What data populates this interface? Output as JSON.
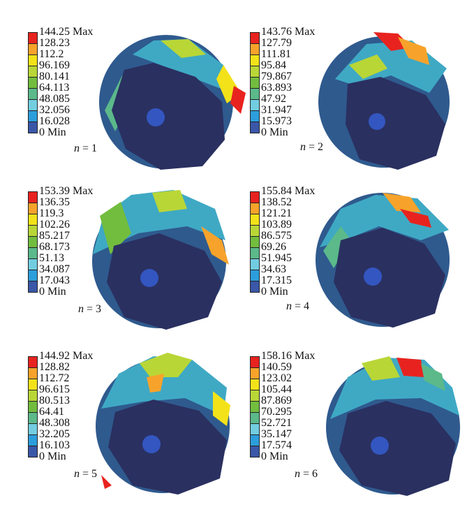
{
  "colors": {
    "scale": [
      "#e8231f",
      "#f7a32b",
      "#f3e219",
      "#b9d637",
      "#72bd3e",
      "#5bb98a",
      "#72cde0",
      "#2c9edb",
      "#3a57a8"
    ],
    "body": "#2a3060",
    "hub": "#3356c0"
  },
  "panels": [
    {
      "ticks": [
        "144.25 Max",
        "128.23",
        "112.2",
        "96.169",
        "80.141",
        "64.113",
        "48.085",
        "32.056",
        "16.028",
        "0 Min"
      ],
      "n_var": "n",
      "n_rest": " = 1"
    },
    {
      "ticks": [
        "143.76 Max",
        "127.79",
        "111.81",
        "95.84",
        "79.867",
        "63.893",
        "47.92",
        "31.947",
        "15.973",
        "0 Min"
      ],
      "n_var": "n",
      "n_rest": " = 2"
    },
    {
      "ticks": [
        "153.39 Max",
        "136.35",
        "119.3",
        "102.26",
        "85.217",
        "68.173",
        "51.13",
        "34.087",
        "17.043",
        "0 Min"
      ],
      "n_var": "n",
      "n_rest": " = 3"
    },
    {
      "ticks": [
        "155.84 Max",
        "138.52",
        "121.21",
        "103.89",
        "86.575",
        "69.26",
        "51.945",
        "34.63",
        "17.315",
        "0 Min"
      ],
      "n_var": "n",
      "n_rest": " = 4"
    },
    {
      "ticks": [
        "144.92 Max",
        "128.82",
        "112.72",
        "96.615",
        "80.513",
        "64.41",
        "48.308",
        "32.205",
        "16.103",
        "0 Min"
      ],
      "n_var": "n",
      "n_rest": " = 5"
    },
    {
      "ticks": [
        "158.16 Max",
        "140.59",
        "123.02",
        "105.44",
        "87.869",
        "70.295",
        "52.721",
        "35.147",
        "17.574",
        "0 Min"
      ],
      "n_var": "n",
      "n_rest": " = 6"
    }
  ]
}
